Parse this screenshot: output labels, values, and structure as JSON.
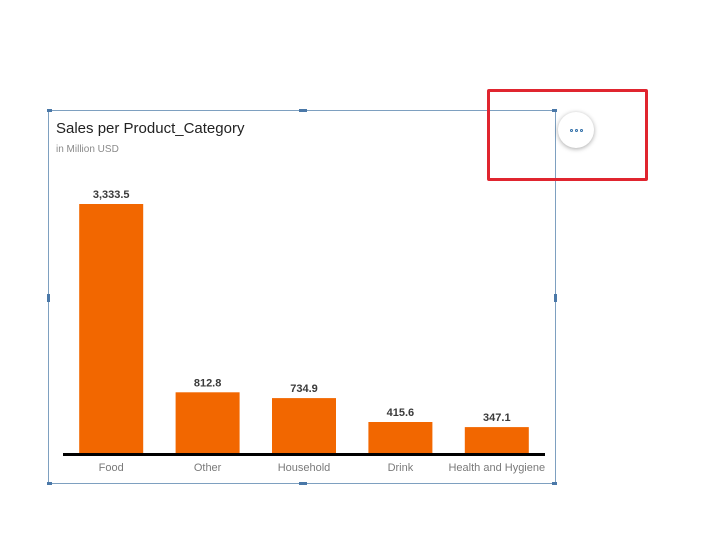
{
  "chart_data": {
    "type": "bar",
    "title": "Sales per Product_Category",
    "subtitle": "in Million USD",
    "categories": [
      "Food",
      "Other",
      "Household",
      "Drink",
      "Health and Hygiene"
    ],
    "values": [
      3333.5,
      812.8,
      734.9,
      415.6,
      347.1
    ],
    "value_labels": [
      "3,333.5",
      "812.8",
      "734.9",
      "415.6",
      "347.1"
    ],
    "bar_color": "#f26700",
    "ylim": [
      0,
      3333.5
    ],
    "grid": false
  },
  "toolbar": {
    "more_icon": "more-horizontal-icon"
  },
  "colors": {
    "highlight": "#e0252f",
    "selection_border": "#7ea0c0"
  }
}
